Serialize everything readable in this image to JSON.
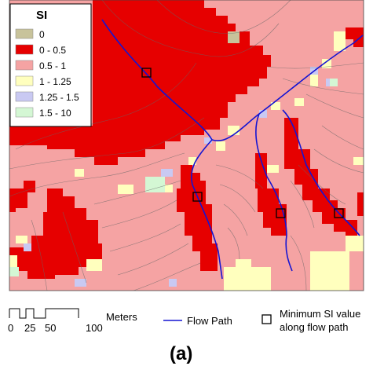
{
  "legend": {
    "title": "SI",
    "classes": [
      {
        "label": "0",
        "color": "#c8c39b"
      },
      {
        "label": "0 - 0.5",
        "color": "#e60000"
      },
      {
        "label": "0.5 - 1",
        "color": "#f5a3a3"
      },
      {
        "label": "1 - 1.25",
        "color": "#ffffbe"
      },
      {
        "label": "1.25 - 1.5",
        "color": "#c9c9f2"
      },
      {
        "label": "1.5 - 10",
        "color": "#d4f7d4"
      }
    ]
  },
  "scale_bar": {
    "ticks": [
      "0",
      "25",
      "50",
      "100"
    ],
    "unit": "Meters"
  },
  "flow_path_legend": {
    "label": "Flow Path",
    "color": "#1414d2"
  },
  "minimum_marker_legend": {
    "label_line1": "Minimum SI value",
    "label_line2": "along flow path"
  },
  "caption": "(a)"
}
